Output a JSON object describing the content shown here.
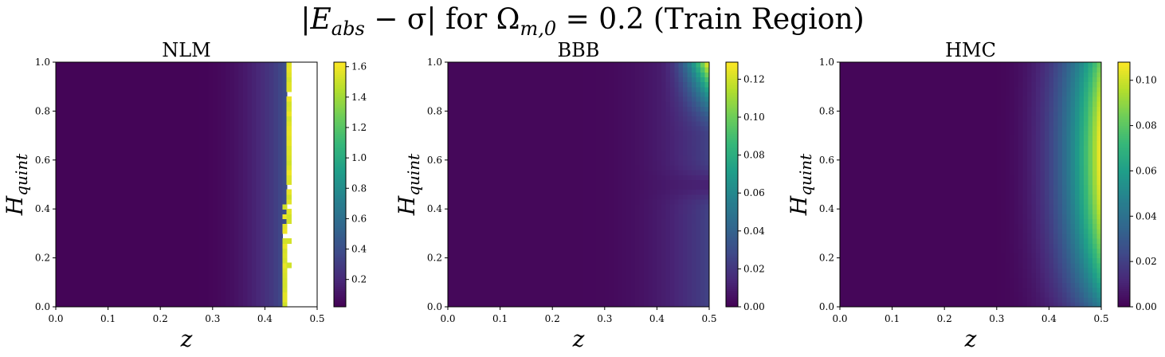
{
  "figure": {
    "suptitle": {
      "prefix": "|E",
      "sub1": "abs",
      "mid": " − σ| for Ω",
      "sub2": "m,0",
      "suffix": " = 0.2 (Train Region)"
    }
  },
  "chart_data": [
    {
      "type": "heatmap",
      "title": "NLM",
      "xlabel": "z",
      "ylabel": "H_quint",
      "xlim": [
        0.0,
        0.5
      ],
      "ylim": [
        0.0,
        1.0
      ],
      "xticks": [
        "0.0",
        "0.1",
        "0.2",
        "0.3",
        "0.4",
        "0.5"
      ],
      "yticks": [
        "0.0",
        "0.2",
        "0.4",
        "0.6",
        "0.8",
        "1.0"
      ],
      "colorbar": {
        "ticks": [
          "0.2",
          "0.4",
          "0.6",
          "0.8",
          "1.0",
          "1.2",
          "1.4",
          "1.6"
        ],
        "min": 0.02,
        "max": 1.63
      },
      "colormap": "viridis",
      "field": "nlm"
    },
    {
      "type": "heatmap",
      "title": "BBB",
      "xlabel": "z",
      "ylabel": "H_quint",
      "xlim": [
        0.0,
        0.5
      ],
      "ylim": [
        0.0,
        1.0
      ],
      "xticks": [
        "0.0",
        "0.1",
        "0.2",
        "0.3",
        "0.4",
        "0.5"
      ],
      "yticks": [
        "0.0",
        "0.2",
        "0.4",
        "0.6",
        "0.8",
        "1.0"
      ],
      "colorbar": {
        "ticks": [
          "0.00",
          "0.02",
          "0.04",
          "0.06",
          "0.08",
          "0.10",
          "0.12"
        ],
        "min": 0.0,
        "max": 0.129
      },
      "colormap": "viridis",
      "field": "bbb"
    },
    {
      "type": "heatmap",
      "title": "HMC",
      "xlabel": "z",
      "ylabel": "H_quint",
      "xlim": [
        0.0,
        0.5
      ],
      "ylim": [
        0.0,
        1.0
      ],
      "xticks": [
        "0.0",
        "0.1",
        "0.2",
        "0.3",
        "0.4",
        "0.5"
      ],
      "yticks": [
        "0.0",
        "0.2",
        "0.4",
        "0.6",
        "0.8",
        "1.0"
      ],
      "colorbar": {
        "ticks": [
          "0.00",
          "0.02",
          "0.04",
          "0.06",
          "0.08",
          "0.10"
        ],
        "min": 0.0,
        "max": 0.108
      },
      "colormap": "viridis",
      "field": "hmc"
    }
  ]
}
